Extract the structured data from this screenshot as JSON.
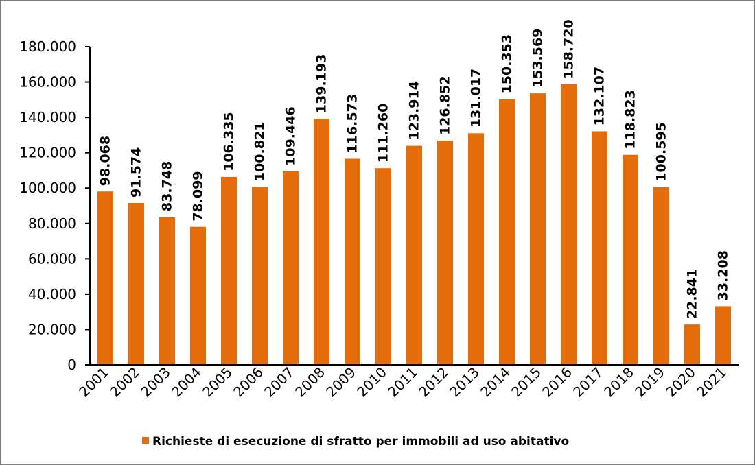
{
  "chart_data": {
    "type": "bar",
    "categories": [
      "2001",
      "2002",
      "2003",
      "2004",
      "2005",
      "2006",
      "2007",
      "2008",
      "2009",
      "2010",
      "2011",
      "2012",
      "2013",
      "2014",
      "2015",
      "2016",
      "2017",
      "2018",
      "2019",
      "2020",
      "2021"
    ],
    "series": [
      {
        "name": "Richieste di esecuzione di sfratto per immobili ad uso abitativo",
        "values": [
          98068,
          91574,
          83748,
          78099,
          106335,
          100821,
          109446,
          139193,
          116573,
          111260,
          123914,
          126852,
          131017,
          150353,
          153569,
          158720,
          132107,
          118823,
          100595,
          22841,
          33208
        ],
        "labels": [
          "98.068",
          "91.574",
          "83.748",
          "78.099",
          "106.335",
          "100.821",
          "109.446",
          "139.193",
          "116.573",
          "111.260",
          "123.914",
          "126.852",
          "131.017",
          "150.353",
          "153.569",
          "158.720",
          "132.107",
          "118.823",
          "100.595",
          "22.841",
          "33.208"
        ],
        "color": "#e46c0a"
      }
    ],
    "y_ticks": [
      0,
      20000,
      40000,
      60000,
      80000,
      100000,
      120000,
      140000,
      160000,
      180000
    ],
    "y_tick_labels": [
      "0",
      "20.000",
      "40.000",
      "60.000",
      "80.000",
      "100.000",
      "120.000",
      "140.000",
      "160.000",
      "180.000"
    ],
    "ylim": [
      0,
      180000
    ],
    "grid": false,
    "legend_position": "bottom"
  }
}
